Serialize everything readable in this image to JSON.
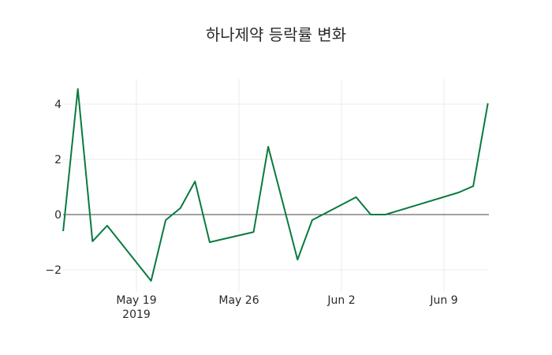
{
  "chart_data": {
    "type": "line",
    "title": "하나제약 등락률 변화",
    "xlabel": "",
    "ylabel": "",
    "ylim": [
      -2.75,
      4.9
    ],
    "grid": true,
    "legend": null,
    "x_tick_labels": [
      {
        "date": "2019-05-19",
        "label": "May 19",
        "sub": "2019"
      },
      {
        "date": "2019-05-26",
        "label": "May 26",
        "sub": ""
      },
      {
        "date": "2019-06-02",
        "label": "Jun 2",
        "sub": ""
      },
      {
        "date": "2019-06-09",
        "label": "Jun 9",
        "sub": ""
      }
    ],
    "y_ticks": [
      -2,
      0,
      2,
      4
    ],
    "y_tick_labels": [
      "−2",
      "0",
      "2",
      "4"
    ],
    "x": [
      "2019-05-14",
      "2019-05-15",
      "2019-05-16",
      "2019-05-17",
      "2019-05-20",
      "2019-05-21",
      "2019-05-22",
      "2019-05-23",
      "2019-05-24",
      "2019-05-27",
      "2019-05-28",
      "2019-05-29",
      "2019-05-30",
      "2019-05-31",
      "2019-06-03",
      "2019-06-04",
      "2019-06-05",
      "2019-06-07",
      "2019-06-10",
      "2019-06-11",
      "2019-06-12"
    ],
    "series": [
      {
        "name": "등락률",
        "color": "#0a7a3e",
        "values": [
          -0.6,
          4.55,
          -0.97,
          -0.4,
          -2.4,
          -0.2,
          0.23,
          1.2,
          -1.0,
          -0.63,
          2.46,
          0.42,
          -1.63,
          -0.2,
          0.63,
          0.0,
          0.0,
          0.32,
          0.8,
          1.03,
          4.03
        ]
      }
    ]
  },
  "colors": {
    "line": "#0a7a3e",
    "grid": "#ebebeb",
    "zeroline": "#444444",
    "text": "#2a2a2a"
  }
}
